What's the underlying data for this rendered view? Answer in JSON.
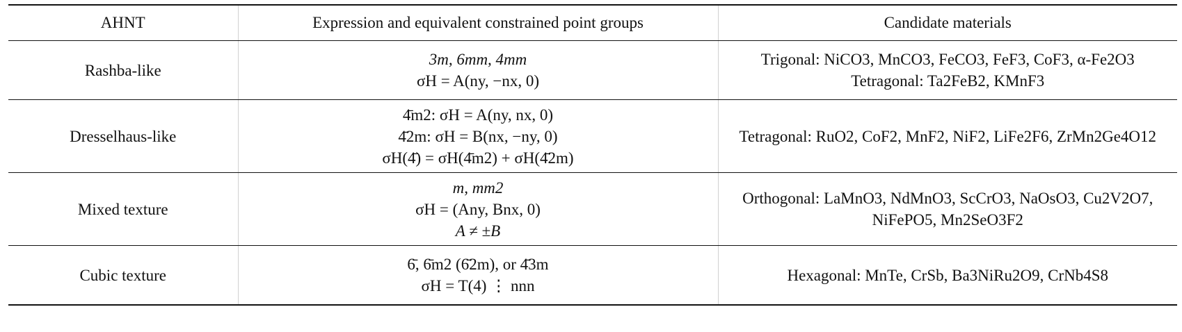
{
  "table": {
    "headers": [
      "AHNT",
      "Expression and equivalent constrained point groups",
      "Candidate materials"
    ],
    "rows": [
      {
        "ahnt": "Rashba-like",
        "expr_lines": [
          "3m, 6mm, 4mm",
          "σH = A(ny, −nx, 0)"
        ],
        "materials_lines": [
          "Trigonal: NiCO3, MnCO3, FeCO3, FeF3, CoF3, α-Fe2O3",
          "Tetragonal: Ta2FeB2, KMnF3"
        ]
      },
      {
        "ahnt": "Dresselhaus-like",
        "expr_lines": [
          "4̄m2: σH = A(ny, nx, 0)",
          "4̄2m: σH = B(nx, −ny, 0)",
          "σH(4̄) = σH(4̄m2) + σH(4̄2m)"
        ],
        "materials_lines": [
          "Tetragonal: RuO2, CoF2, MnF2, NiF2, LiFe2F6, ZrMn2Ge4O12"
        ]
      },
      {
        "ahnt": "Mixed texture",
        "expr_lines": [
          "m, mm2",
          "σH = (Any, Bnx, 0)",
          "A ≠ ±B"
        ],
        "materials_lines": [
          "Orthogonal: LaMnO3, NdMnO3, ScCrO3, NaOsO3, Cu2V2O7,",
          "NiFePO5, Mn2SeO3F2"
        ]
      },
      {
        "ahnt": "Cubic texture",
        "expr_lines": [
          "6̄, 6̄m2 (6̄2m), or 4̄3m",
          "σH = T(4) ⋮ nnn"
        ],
        "materials_lines": [
          "Hexagonal: MnTe, CrSb, Ba3NiRu2O9, CrNb4S8"
        ]
      }
    ]
  }
}
